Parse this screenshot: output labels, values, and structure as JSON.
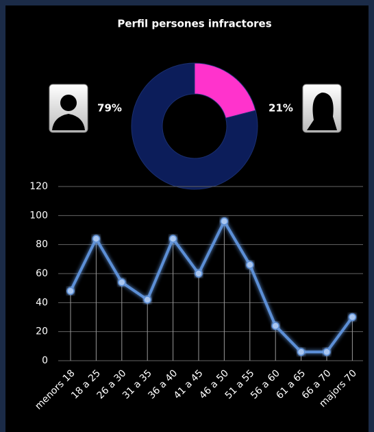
{
  "chart_data": [
    {
      "type": "pie",
      "title": "Perfil persones infractores",
      "values": [
        21,
        79
      ],
      "value_labels": [
        "21%",
        "79%"
      ],
      "colors": [
        "#ff33cc",
        "#0c1d5a"
      ]
    },
    {
      "type": "line",
      "categories": [
        "menors 18",
        "18 a 25",
        "26 a 30",
        "31 a 35",
        "36 a 40",
        "41 a 45",
        "46 a 50",
        "51 a 55",
        "56 a 60",
        "61 a 65",
        "66 a 70",
        "majors 70"
      ],
      "values": [
        48,
        84,
        54,
        42,
        84,
        60,
        96,
        66,
        24,
        6,
        6,
        30
      ],
      "color": "#5b8fd6",
      "ylim": [
        0,
        120
      ],
      "yticks": [
        0,
        20,
        40,
        60,
        80,
        100,
        120
      ],
      "grid": true
    }
  ]
}
